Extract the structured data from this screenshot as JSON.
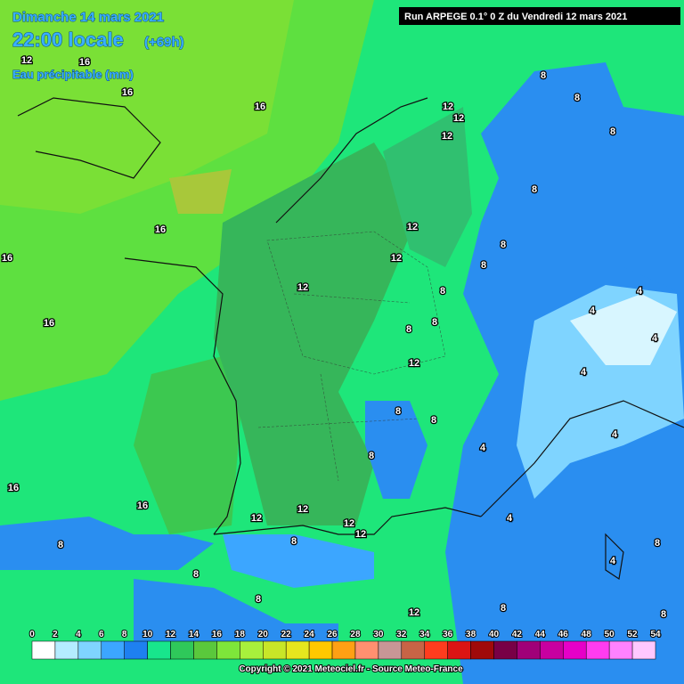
{
  "header": {
    "date": "Dimanche 14 mars 2021",
    "time": "22:00 locale",
    "lead": "(+69h)",
    "field": "Eau précipitable (mm)"
  },
  "run_info": "Run ARPEGE 0.1° 0 Z du Vendredi 12 mars 2021",
  "copyright": "Copyright © 2021 Meteociel.fr - Source Meteo-France",
  "colorbar": {
    "ticks": [
      0,
      2,
      4,
      6,
      8,
      10,
      12,
      14,
      16,
      18,
      20,
      22,
      24,
      26,
      28,
      30,
      32,
      34,
      36,
      38,
      40,
      42,
      44,
      46,
      48,
      50,
      52,
      54
    ],
    "colors": [
      "#ffffff",
      "#b4ecff",
      "#7fd4ff",
      "#3ca6ff",
      "#1e80f0",
      "#18e68c",
      "#2fc85a",
      "#5ac83c",
      "#7ee63a",
      "#a8f03c",
      "#c8e628",
      "#e6e61e",
      "#ffc800",
      "#ffa014",
      "#ff9070",
      "#c89696",
      "#c86446",
      "#ff3c1e",
      "#dc1414",
      "#a00a0a",
      "#780046",
      "#a00078",
      "#c800a0",
      "#e600c8",
      "#ff3cf0",
      "#ff82ff",
      "#ffc8ff"
    ]
  },
  "contour_labels": [
    "12",
    "16",
    "16",
    "16",
    "16",
    "16",
    "16",
    "12",
    "12",
    "12",
    "12",
    "12",
    "12",
    "8",
    "8",
    "8",
    "8",
    "8",
    "8",
    "8",
    "8",
    "8",
    "12",
    "8",
    "8",
    "8",
    "4",
    "4",
    "4",
    "4",
    "4",
    "4",
    "4",
    "16",
    "16",
    "12",
    "12",
    "12",
    "12",
    "8",
    "8",
    "8",
    "8",
    "12",
    "4",
    "8",
    "8",
    "8"
  ]
}
